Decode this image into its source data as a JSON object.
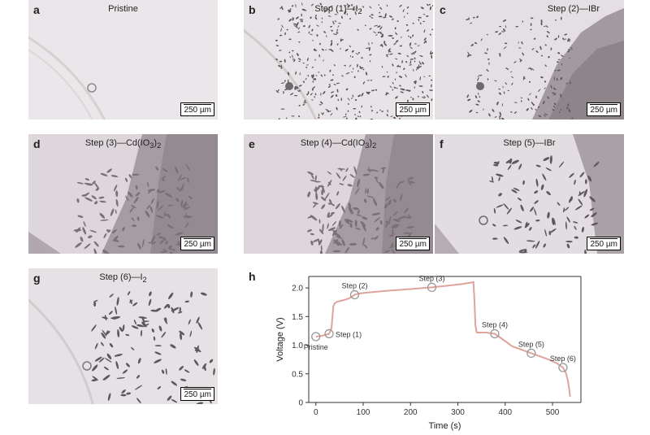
{
  "panels": [
    {
      "letter": "a",
      "title": "Pristine",
      "sub": "",
      "scale": "250 µm"
    },
    {
      "letter": "b",
      "title": "Step (1)—I",
      "sub": "2",
      "scale": "250 µm"
    },
    {
      "letter": "c",
      "title": "Step (2)—IBr",
      "sub": "",
      "scale": "250 µm"
    },
    {
      "letter": "d",
      "title": "Step (3)—Cd(IO",
      "sub": "3",
      "tail": ")",
      "sub2": "2",
      "scale": "250 µm"
    },
    {
      "letter": "e",
      "title": "Step (4)—Cd(IO",
      "sub": "3",
      "tail": ")",
      "sub2": "2",
      "scale": "250 µm"
    },
    {
      "letter": "f",
      "title": "Step (5)—IBr",
      "sub": "",
      "scale": "250 µm"
    },
    {
      "letter": "g",
      "title": "Step (6)—I",
      "sub": "2",
      "scale": "250 µm"
    }
  ],
  "chart": {
    "letter": "h",
    "xlabel": "Time (s)",
    "ylabel": "Voltage (V)",
    "line_color": "#e0a39c"
  },
  "chart_data": {
    "type": "line",
    "xlabel": "Time (s)",
    "ylabel": "Voltage (V)",
    "xlim": [
      -15,
      560
    ],
    "ylim": [
      0,
      2.2
    ],
    "xticks": [
      0,
      100,
      200,
      300,
      400,
      500
    ],
    "yticks": [
      0,
      0.5,
      1.0,
      1.5,
      2.0
    ],
    "ytick_labels": [
      "0",
      "0.5",
      "1.0",
      "1.5",
      "2.0"
    ],
    "series": [
      {
        "x": [
          0,
          10,
          20,
          28,
          33,
          37,
          40,
          45,
          55,
          65,
          75,
          82,
          90,
          110,
          150,
          200,
          245,
          280,
          310,
          333,
          335,
          337,
          340,
          360,
          378,
          395,
          415,
          435,
          455,
          475,
          495,
          510,
          522,
          528,
          532,
          535,
          537
        ],
        "y": [
          1.15,
          1.16,
          1.18,
          1.2,
          1.3,
          1.68,
          1.73,
          1.76,
          1.78,
          1.8,
          1.84,
          1.88,
          1.9,
          1.92,
          1.95,
          1.98,
          2.01,
          2.04,
          2.07,
          2.1,
          1.8,
          1.35,
          1.22,
          1.22,
          1.2,
          1.1,
          0.98,
          0.92,
          0.86,
          0.8,
          0.74,
          0.68,
          0.61,
          0.52,
          0.4,
          0.25,
          0.1
        ]
      }
    ],
    "annotations": [
      {
        "label": "Pristine",
        "x": 0,
        "y": 1.15,
        "pos": "below"
      },
      {
        "label": "Step (1)",
        "x": 28,
        "y": 1.2,
        "pos": "right"
      },
      {
        "label": "Step (2)",
        "x": 82,
        "y": 1.88,
        "pos": "above"
      },
      {
        "label": "Step (3)",
        "x": 245,
        "y": 2.01,
        "pos": "above"
      },
      {
        "label": "Step (4)",
        "x": 378,
        "y": 1.2,
        "pos": "above"
      },
      {
        "label": "Step (5)",
        "x": 455,
        "y": 0.86,
        "pos": "above"
      },
      {
        "label": "Step (6)",
        "x": 522,
        "y": 0.61,
        "pos": "above"
      }
    ]
  }
}
